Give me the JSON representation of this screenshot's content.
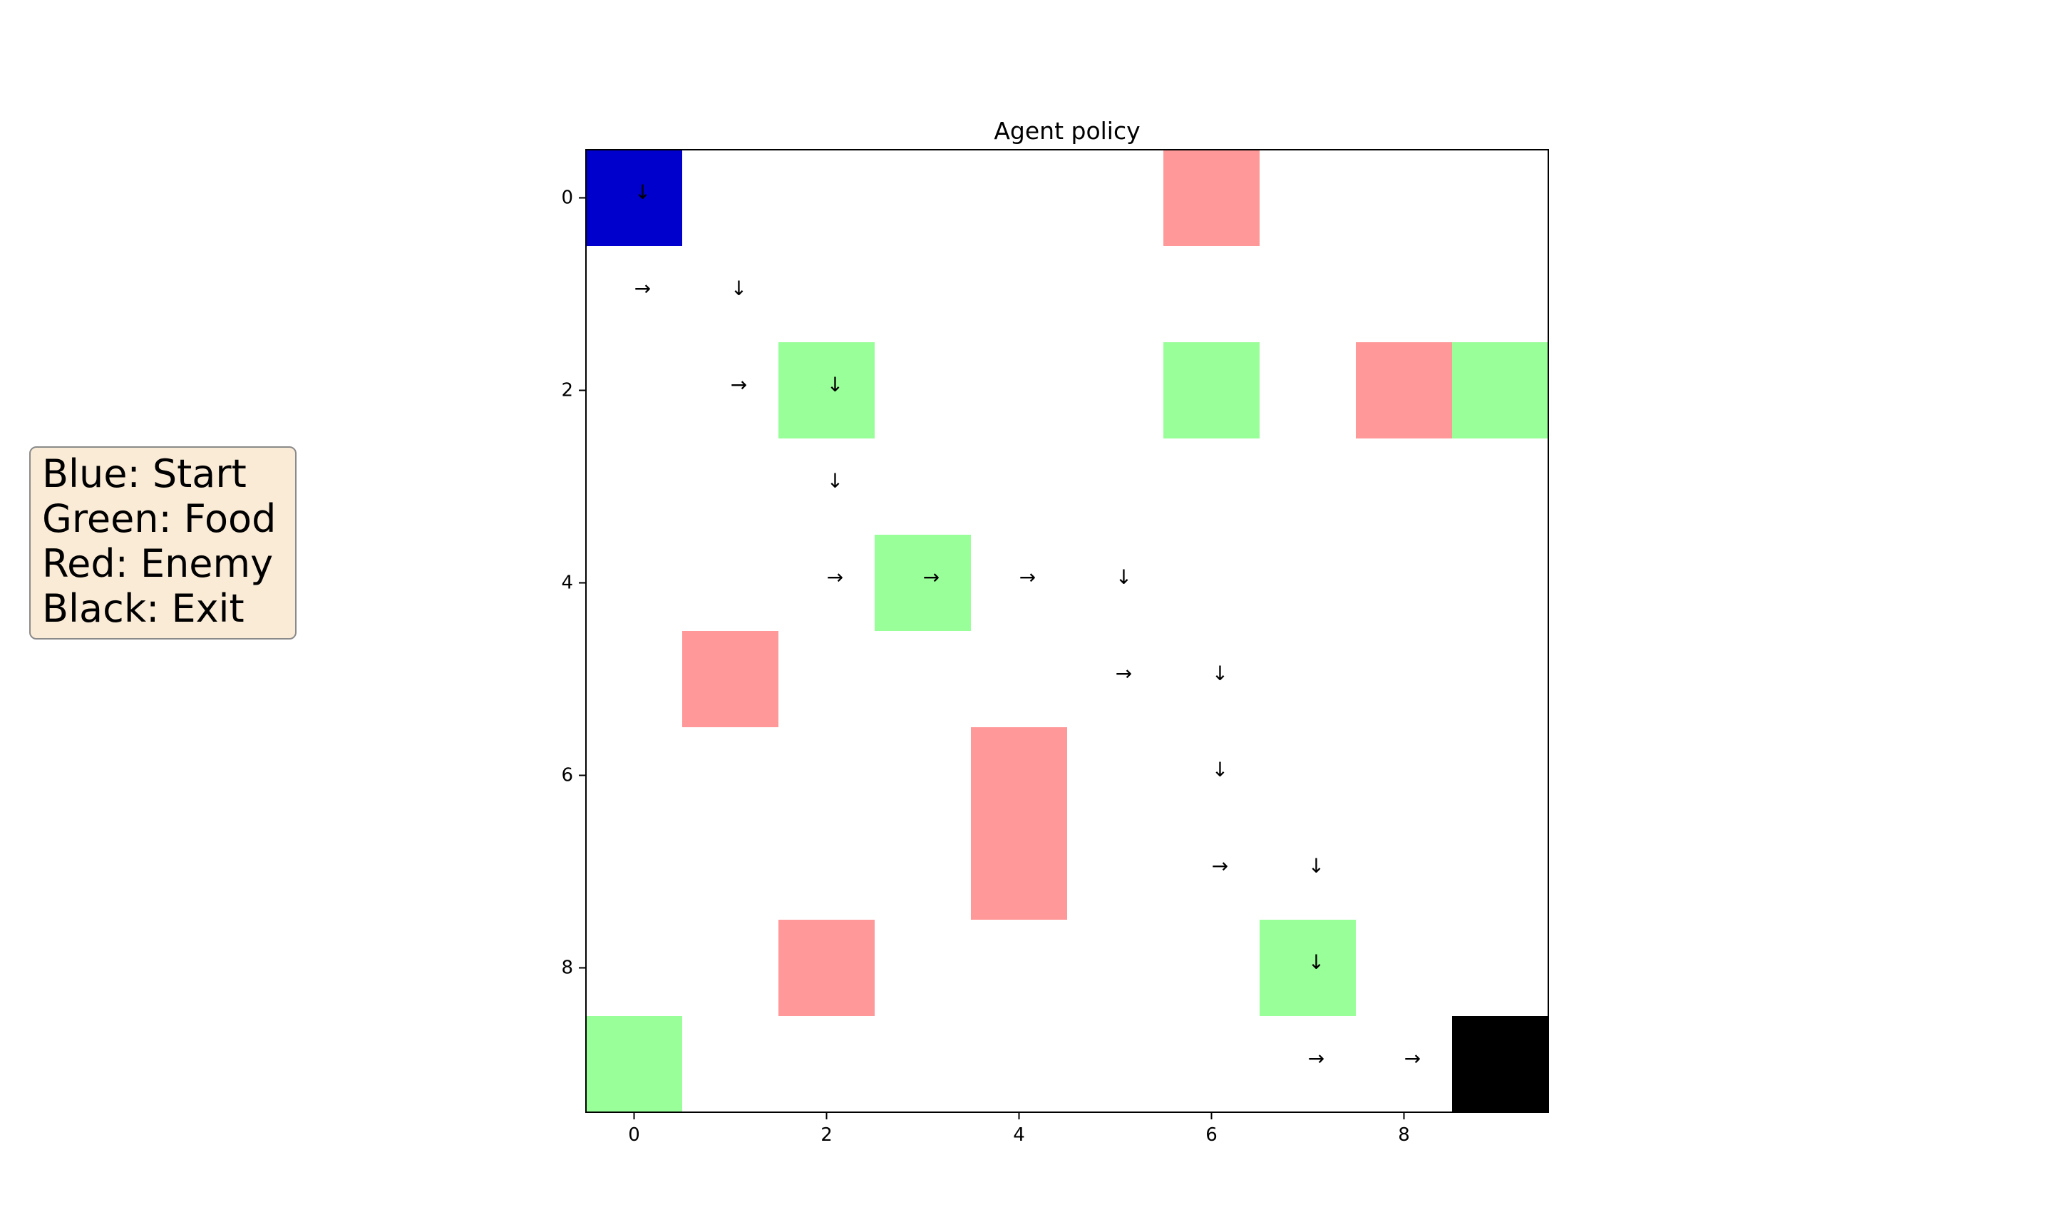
{
  "chart_data": {
    "type": "heatmap",
    "title": "Agent policy",
    "xlabel": "",
    "ylabel": "",
    "grid_size": [
      10,
      10
    ],
    "xlim": [
      -0.5,
      9.5
    ],
    "ylim": [
      9.5,
      -0.5
    ],
    "x_ticks": [
      0,
      2,
      4,
      6,
      8
    ],
    "y_ticks": [
      0,
      2,
      4,
      6,
      8
    ],
    "colors": {
      "start": "#0000cc",
      "food": "#99ff99",
      "enemy": "#ff9999",
      "exit": "#000000",
      "empty": "#ffffff"
    },
    "cells": [
      {
        "row": 0,
        "col": 0,
        "kind": "start"
      },
      {
        "row": 0,
        "col": 6,
        "kind": "enemy"
      },
      {
        "row": 2,
        "col": 2,
        "kind": "food"
      },
      {
        "row": 2,
        "col": 6,
        "kind": "food"
      },
      {
        "row": 2,
        "col": 8,
        "kind": "enemy"
      },
      {
        "row": 2,
        "col": 9,
        "kind": "food"
      },
      {
        "row": 4,
        "col": 3,
        "kind": "food"
      },
      {
        "row": 5,
        "col": 1,
        "kind": "enemy"
      },
      {
        "row": 6,
        "col": 4,
        "kind": "enemy"
      },
      {
        "row": 7,
        "col": 4,
        "kind": "enemy"
      },
      {
        "row": 8,
        "col": 2,
        "kind": "enemy"
      },
      {
        "row": 8,
        "col": 7,
        "kind": "food"
      },
      {
        "row": 9,
        "col": 0,
        "kind": "food"
      },
      {
        "row": 9,
        "col": 9,
        "kind": "exit"
      }
    ],
    "arrows": [
      {
        "row": 0,
        "col": 0,
        "symbol": "↓"
      },
      {
        "row": 1,
        "col": 0,
        "symbol": "→"
      },
      {
        "row": 1,
        "col": 1,
        "symbol": "↓"
      },
      {
        "row": 2,
        "col": 1,
        "symbol": "→"
      },
      {
        "row": 2,
        "col": 2,
        "symbol": "↓"
      },
      {
        "row": 3,
        "col": 2,
        "symbol": "↓"
      },
      {
        "row": 4,
        "col": 2,
        "symbol": "→"
      },
      {
        "row": 4,
        "col": 3,
        "symbol": "→"
      },
      {
        "row": 4,
        "col": 4,
        "symbol": "→"
      },
      {
        "row": 4,
        "col": 5,
        "symbol": "↓"
      },
      {
        "row": 5,
        "col": 5,
        "symbol": "→"
      },
      {
        "row": 5,
        "col": 6,
        "symbol": "↓"
      },
      {
        "row": 6,
        "col": 6,
        "symbol": "↓"
      },
      {
        "row": 7,
        "col": 6,
        "symbol": "→"
      },
      {
        "row": 7,
        "col": 7,
        "symbol": "↓"
      },
      {
        "row": 8,
        "col": 7,
        "symbol": "↓"
      },
      {
        "row": 9,
        "col": 7,
        "symbol": "→"
      },
      {
        "row": 9,
        "col": 8,
        "symbol": "→"
      }
    ],
    "legend": {
      "placement": "left",
      "lines": [
        "Blue: Start",
        "Green: Food",
        "Red: Enemy",
        "Black: Exit"
      ]
    }
  }
}
